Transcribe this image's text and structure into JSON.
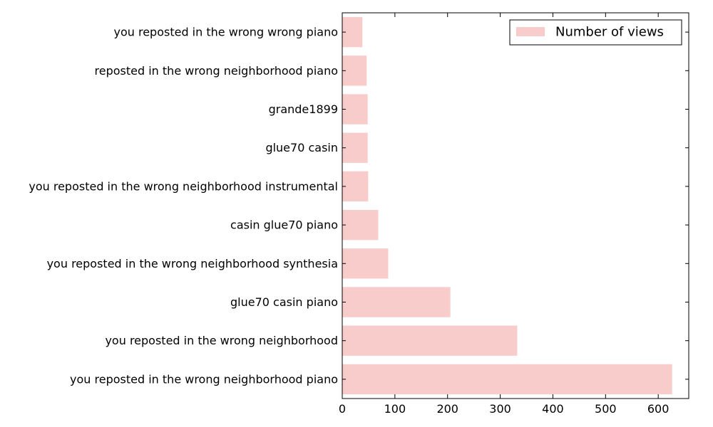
{
  "chart_data": {
    "type": "bar",
    "orientation": "horizontal",
    "title": "",
    "xlabel": "",
    "ylabel": "",
    "xlim": [
      0,
      658
    ],
    "xticks": [
      0,
      100,
      200,
      300,
      400,
      500,
      600
    ],
    "grid": false,
    "legend_position": "top-right",
    "bar_color": "#f9cccc",
    "categories": [
      "you reposted in the wrong neighborhood piano",
      "you reposted in the wrong neighborhood",
      "glue70 casin piano",
      "you reposted in the wrong neighborhood synthesia",
      "casin glue70 piano",
      "you reposted in the wrong neighborhood instrumental",
      "glue70 casin",
      "grande1899",
      "reposted in the wrong neighborhood piano",
      "you reposted in the wrong wrong piano"
    ],
    "series": [
      {
        "name": "Number of views",
        "values": [
          627,
          333,
          206,
          88,
          69,
          50,
          49,
          49,
          47,
          39
        ]
      }
    ]
  }
}
